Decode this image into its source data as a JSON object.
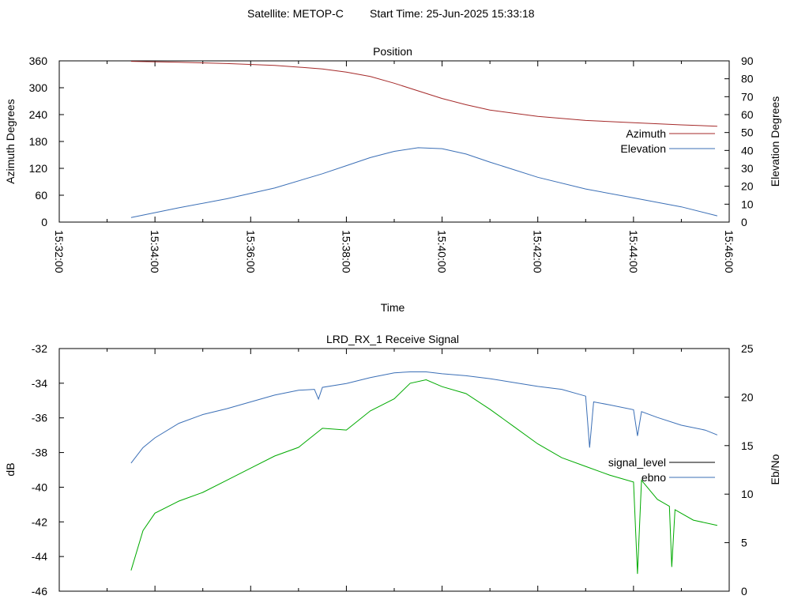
{
  "header": {
    "satellite_text": "Satellite: METOP-C",
    "start_time_text": "Start Time: 25-Jun-2025 15:33:18"
  },
  "colors": {
    "azimuth": "#a52a2a",
    "elevation": "#3b6fb6",
    "signal_level": "#000000",
    "ebno": "#3b6fb6",
    "signal_trace": "#00aa00",
    "axis": "#000000",
    "background": "#ffffff"
  },
  "chart_data": [
    {
      "type": "line",
      "title": "Position",
      "xlabel": "Time",
      "ylabel": "Azimuth Degrees",
      "y2label": "Elevation Degrees",
      "xlim": [
        "15:32:00",
        "15:46:00"
      ],
      "xticks": [
        "15:32:00",
        "15:34:00",
        "15:36:00",
        "15:38:00",
        "15:40:00",
        "15:42:00",
        "15:44:00",
        "15:46:00"
      ],
      "ylim": [
        0,
        360
      ],
      "yticks": [
        0,
        60,
        120,
        180,
        240,
        300,
        360
      ],
      "y2lim": [
        0,
        90
      ],
      "y2ticks": [
        0,
        10,
        20,
        30,
        40,
        50,
        60,
        70,
        80,
        90
      ],
      "legend_position": "right",
      "grid": false,
      "series": [
        {
          "name": "Azimuth",
          "axis": "y",
          "x": [
            "15:33:30",
            "15:34:30",
            "15:35:30",
            "15:36:30",
            "15:37:30",
            "15:38:00",
            "15:38:30",
            "15:39:00",
            "15:39:30",
            "15:40:00",
            "15:40:30",
            "15:41:00",
            "15:42:00",
            "15:43:00",
            "15:44:00",
            "15:45:00",
            "15:45:45"
          ],
          "y": [
            359,
            357,
            354,
            350,
            342,
            335,
            325,
            310,
            293,
            276,
            262,
            250,
            236,
            227,
            222,
            217,
            214
          ]
        },
        {
          "name": "Elevation",
          "axis": "y2",
          "x": [
            "15:33:30",
            "15:34:30",
            "15:35:30",
            "15:36:30",
            "15:37:30",
            "15:38:00",
            "15:38:30",
            "15:39:00",
            "15:39:30",
            "15:40:00",
            "15:40:30",
            "15:41:00",
            "15:42:00",
            "15:43:00",
            "15:44:00",
            "15:45:00",
            "15:45:45"
          ],
          "y": [
            2.5,
            8,
            13,
            19,
            27,
            31.5,
            36,
            39.5,
            41.5,
            41,
            38,
            33.5,
            25,
            18.5,
            13.5,
            8.5,
            3.5
          ]
        }
      ]
    },
    {
      "type": "line",
      "title": "LRD_RX_1 Receive Signal",
      "ylabel": "dB",
      "y2label": "Eb/No",
      "xlim": [
        "15:32:00",
        "15:46:00"
      ],
      "ylim": [
        -46,
        -32
      ],
      "yticks": [
        -46,
        -44,
        -42,
        -40,
        -38,
        -36,
        -34,
        -32
      ],
      "y2lim": [
        0,
        25
      ],
      "y2ticks": [
        0,
        5,
        10,
        15,
        20,
        25
      ],
      "legend_position": "right",
      "grid": false,
      "series": [
        {
          "name": "signal_level",
          "axis": "y",
          "x": [
            "15:33:30",
            "15:33:45",
            "15:34:00",
            "15:34:30",
            "15:35:00",
            "15:35:30",
            "15:36:00",
            "15:36:30",
            "15:37:00",
            "15:37:30",
            "15:38:00",
            "15:38:30",
            "15:39:00",
            "15:39:20",
            "15:39:40",
            "15:40:00",
            "15:40:30",
            "15:41:00",
            "15:41:30",
            "15:42:00",
            "15:42:30",
            "15:43:00",
            "15:43:30",
            "15:44:00",
            "15:44:05",
            "15:44:10",
            "15:44:30",
            "15:44:45",
            "15:44:48",
            "15:44:52",
            "15:45:15",
            "15:45:45"
          ],
          "y": [
            -44.8,
            -42.5,
            -41.5,
            -40.8,
            -40.3,
            -39.6,
            -38.9,
            -38.2,
            -37.7,
            -36.6,
            -36.7,
            -35.6,
            -34.9,
            -34.0,
            -33.8,
            -34.2,
            -34.6,
            -35.5,
            -36.5,
            -37.5,
            -38.3,
            -38.8,
            -39.3,
            -39.7,
            -45.0,
            -39.6,
            -40.7,
            -41.1,
            -44.6,
            -41.3,
            -41.9,
            -42.2
          ]
        },
        {
          "name": "ebno",
          "axis": "y2",
          "x": [
            "15:33:30",
            "15:33:45",
            "15:34:00",
            "15:34:30",
            "15:35:00",
            "15:35:30",
            "15:36:00",
            "15:36:30",
            "15:37:00",
            "15:37:20",
            "15:37:25",
            "15:37:30",
            "15:38:00",
            "15:38:30",
            "15:39:00",
            "15:39:20",
            "15:39:40",
            "15:40:00",
            "15:40:30",
            "15:41:00",
            "15:41:30",
            "15:42:00",
            "15:42:30",
            "15:43:00",
            "15:43:05",
            "15:43:10",
            "15:43:30",
            "15:44:00",
            "15:44:05",
            "15:44:10",
            "15:44:30",
            "15:45:00",
            "15:45:30",
            "15:45:45"
          ],
          "y": [
            13.2,
            14.8,
            15.8,
            17.3,
            18.2,
            18.8,
            19.5,
            20.2,
            20.7,
            20.8,
            19.8,
            21.0,
            21.4,
            22.0,
            22.5,
            22.6,
            22.6,
            22.4,
            22.2,
            21.9,
            21.5,
            21.1,
            20.8,
            20.1,
            14.8,
            19.5,
            19.2,
            18.7,
            16.0,
            18.5,
            17.9,
            17.1,
            16.6,
            16.1
          ]
        }
      ]
    }
  ]
}
